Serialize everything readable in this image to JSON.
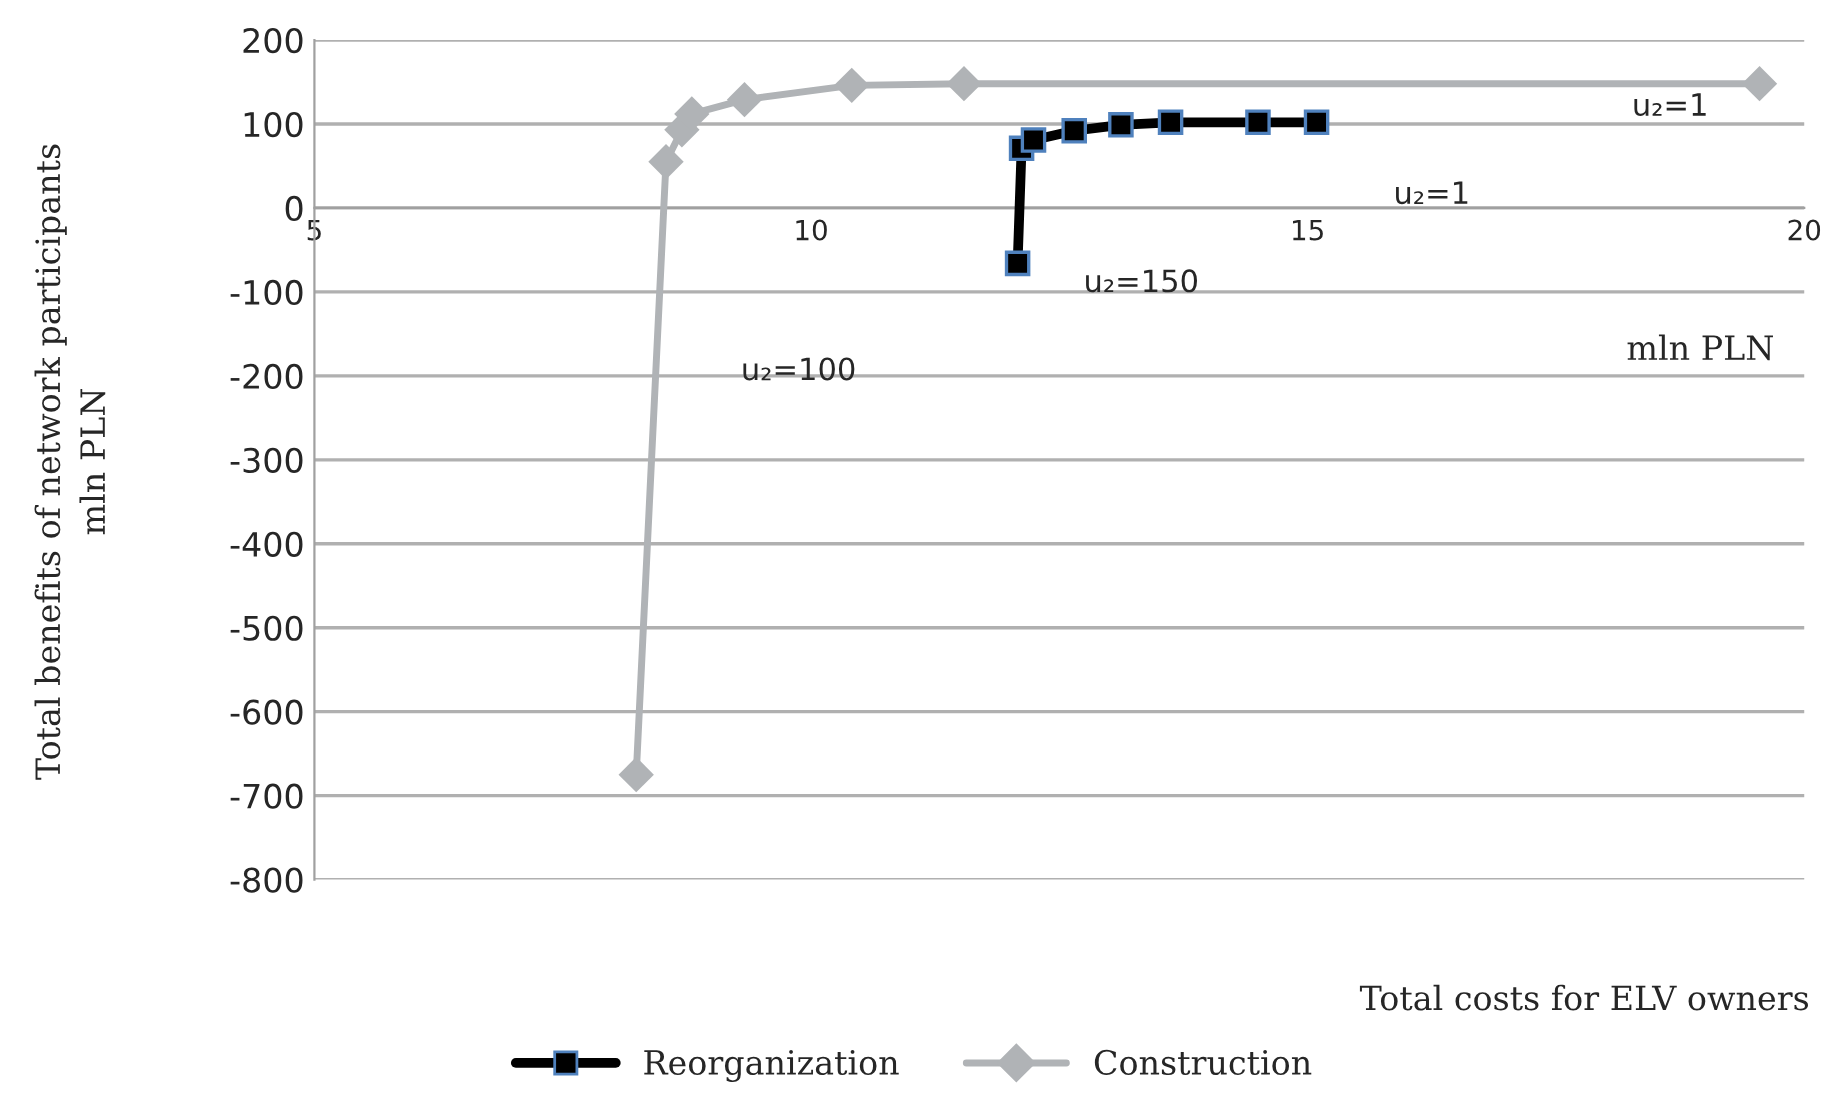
{
  "chart_data": {
    "type": "line",
    "xlabel": "Total costs for ELV owners",
    "ylabel": "Total benefits of network participants\nmln PLN",
    "xlim": [
      5,
      20
    ],
    "xticks": [
      5,
      10,
      15,
      20
    ],
    "ylim": [
      -800,
      200
    ],
    "yticks": [
      -800,
      -700,
      -600,
      -500,
      -400,
      -300,
      -200,
      -100,
      0,
      100,
      200
    ],
    "grid": "y",
    "legend": "bottom",
    "series": [
      {
        "name": "Reorganization",
        "color": "#000000",
        "marker": "square",
        "x": [
          12.08,
          12.12,
          12.24,
          12.65,
          13.12,
          13.62,
          14.5,
          15.09
        ],
        "values": [
          -66,
          71,
          81,
          92,
          99,
          102,
          102,
          102
        ]
      },
      {
        "name": "Construction",
        "color": "#b0b3b6",
        "marker": "diamond",
        "x": [
          8.24,
          8.54,
          8.7,
          8.8,
          9.33,
          10.41,
          11.54,
          19.55
        ],
        "values": [
          -675,
          55,
          93,
          112,
          129,
          146,
          148,
          148
        ]
      }
    ],
    "annotations": [
      "u₂=1",
      "u₂=1",
      "u₂=150",
      "u₂=100",
      "mln PLN"
    ]
  }
}
